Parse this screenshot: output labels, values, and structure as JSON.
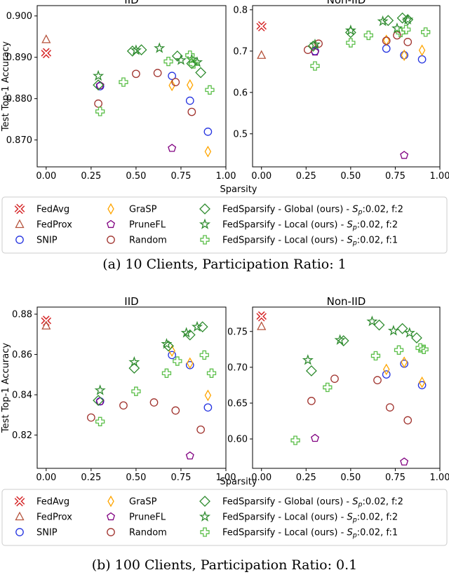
{
  "colors": {
    "FedAvg": "#d62728",
    "FedProx": "#b5533c",
    "SNIP": "#2433e0",
    "GraSP": "#ffa500",
    "PruneFL": "#800080",
    "Random": "#a0322d",
    "FedSparsifyGlobal": "#2e8b2e",
    "FedSparsifyLocal2": "#2e8b2e",
    "FedSparsifyLocal1": "#5cbf4a"
  },
  "legend": {
    "items": [
      {
        "key": "FedAvg",
        "label": "FedAvg"
      },
      {
        "key": "FedProx",
        "label": "FedProx"
      },
      {
        "key": "SNIP",
        "label": "SNIP"
      },
      {
        "key": "GraSP",
        "label": "GraSP"
      },
      {
        "key": "PruneFL",
        "label": "PruneFL"
      },
      {
        "key": "Random",
        "label": "Random"
      },
      {
        "key": "FedSparsifyGlobal",
        "label": "FedSparsify - Global (ours) - ",
        "sp_sym": "S",
        "sp_sub": "p",
        "sp_rest": ":0.02, f:2"
      },
      {
        "key": "FedSparsifyLocal2",
        "label": "FedSparsify - Local (ours) - ",
        "sp_sym": "S",
        "sp_sub": "p",
        "sp_rest": ":0.02, f:2"
      },
      {
        "key": "FedSparsifyLocal1",
        "label": "FedSparsify - Local (ours) - ",
        "sp_sym": "S",
        "sp_sub": "p",
        "sp_rest": ":0.02, f:1"
      }
    ]
  },
  "captions": {
    "a": "(a) 10 Clients, Participation Ratio: 1",
    "b": "(b) 100 Clients, Participation Ratio: 0.1"
  },
  "chart_data": [
    {
      "type": "scatter",
      "title": "IID",
      "xlabel": "Sparsity",
      "ylabel": "Test Top-1 Accuracy",
      "xlim": [
        -0.05,
        1.0
      ],
      "ylim": [
        0.8635,
        0.9025
      ],
      "xticks": [
        "0.00",
        "0.25",
        "0.50",
        "0.75",
        "1.00"
      ],
      "yticks": [
        "0.870",
        "0.880",
        "0.890",
        "0.900"
      ],
      "series": [
        {
          "name": "FedAvg",
          "points": [
            [
              0.0,
              0.891
            ]
          ]
        },
        {
          "name": "FedProx",
          "points": [
            [
              0.0,
              0.8943
            ]
          ]
        },
        {
          "name": "SNIP",
          "points": [
            [
              0.3,
              0.883
            ],
            [
              0.7,
              0.8855
            ],
            [
              0.8,
              0.8795
            ],
            [
              0.9,
              0.872
            ]
          ]
        },
        {
          "name": "GraSP",
          "points": [
            [
              0.7,
              0.8832
            ],
            [
              0.8,
              0.8833
            ],
            [
              0.9,
              0.8672
            ]
          ]
        },
        {
          "name": "PruneFL",
          "points": [
            [
              0.3,
              0.8832
            ],
            [
              0.7,
              0.868
            ]
          ]
        },
        {
          "name": "Random",
          "points": [
            [
              0.29,
              0.8788
            ],
            [
              0.5,
              0.886
            ],
            [
              0.62,
              0.8862
            ],
            [
              0.72,
              0.884
            ],
            [
              0.81,
              0.8768
            ]
          ]
        },
        {
          "name": "FedSparsifyGlobal",
          "points": [
            [
              0.29,
              0.8833
            ],
            [
              0.48,
              0.8915
            ],
            [
              0.53,
              0.8918
            ],
            [
              0.73,
              0.8903
            ],
            [
              0.86,
              0.8863
            ],
            [
              0.81,
              0.8885
            ]
          ]
        },
        {
          "name": "FedSparsifyLocal2",
          "points": [
            [
              0.29,
              0.8855
            ],
            [
              0.5,
              0.8917
            ],
            [
              0.63,
              0.8922
            ],
            [
              0.75,
              0.8893
            ],
            [
              0.81,
              0.8895
            ],
            [
              0.84,
              0.8888
            ]
          ]
        },
        {
          "name": "FedSparsifyLocal1",
          "points": [
            [
              0.3,
              0.8769
            ],
            [
              0.43,
              0.884
            ],
            [
              0.68,
              0.889
            ],
            [
              0.8,
              0.8905
            ],
            [
              0.82,
              0.8884
            ],
            [
              0.91,
              0.8821
            ]
          ]
        }
      ]
    },
    {
      "type": "scatter",
      "title": "Non-IID",
      "xlabel": "",
      "ylabel": "",
      "xlim": [
        -0.05,
        1.0
      ],
      "ylim": [
        0.42,
        0.81
      ],
      "xticks": [
        "0.00",
        "0.25",
        "0.50",
        "0.75",
        "1.00"
      ],
      "yticks": [
        "0.5",
        "0.6",
        "0.7",
        "0.8"
      ],
      "series": [
        {
          "name": "FedAvg",
          "points": [
            [
              0.0,
              0.76
            ]
          ]
        },
        {
          "name": "FedProx",
          "points": [
            [
              0.0,
              0.69
            ]
          ]
        },
        {
          "name": "SNIP",
          "points": [
            [
              0.3,
              0.7
            ],
            [
              0.7,
              0.706
            ],
            [
              0.8,
              0.69
            ],
            [
              0.9,
              0.68
            ]
          ]
        },
        {
          "name": "GraSP",
          "points": [
            [
              0.7,
              0.726
            ],
            [
              0.8,
              0.69
            ],
            [
              0.9,
              0.702
            ]
          ]
        },
        {
          "name": "PruneFL",
          "points": [
            [
              0.3,
              0.698
            ],
            [
              0.8,
              0.448
            ]
          ]
        },
        {
          "name": "Random",
          "points": [
            [
              0.26,
              0.703
            ],
            [
              0.32,
              0.718
            ],
            [
              0.7,
              0.725
            ],
            [
              0.76,
              0.738
            ],
            [
              0.82,
              0.722
            ]
          ]
        },
        {
          "name": "FedSparsifyGlobal",
          "points": [
            [
              0.29,
              0.712
            ],
            [
              0.5,
              0.745
            ],
            [
              0.71,
              0.774
            ],
            [
              0.79,
              0.78
            ],
            [
              0.82,
              0.776
            ]
          ]
        },
        {
          "name": "FedSparsifyLocal2",
          "points": [
            [
              0.3,
              0.716
            ],
            [
              0.5,
              0.75
            ],
            [
              0.68,
              0.772
            ],
            [
              0.76,
              0.755
            ],
            [
              0.82,
              0.776
            ]
          ]
        },
        {
          "name": "FedSparsifyLocal1",
          "points": [
            [
              0.3,
              0.664
            ],
            [
              0.5,
              0.72
            ],
            [
              0.6,
              0.738
            ],
            [
              0.78,
              0.745
            ],
            [
              0.81,
              0.752
            ],
            [
              0.92,
              0.746
            ]
          ]
        }
      ]
    },
    {
      "type": "scatter",
      "title": "IID",
      "xlabel": "Sparsity",
      "ylabel": "Test Top-1 Accuracy",
      "xlim": [
        -0.05,
        1.0
      ],
      "ylim": [
        0.8035,
        0.8835
      ],
      "xticks": [
        "0.00",
        "0.25",
        "0.50",
        "0.75",
        "1.00"
      ],
      "yticks": [
        "0.82",
        "0.84",
        "0.86",
        "0.88"
      ],
      "series": [
        {
          "name": "FedAvg",
          "points": [
            [
              0.0,
              0.8767
            ]
          ]
        },
        {
          "name": "FedProx",
          "points": [
            [
              0.0,
              0.8742
            ]
          ]
        },
        {
          "name": "SNIP",
          "points": [
            [
              0.3,
              0.8367
            ],
            [
              0.7,
              0.8597
            ],
            [
              0.8,
              0.8547
            ],
            [
              0.9,
              0.8337
            ]
          ]
        },
        {
          "name": "GraSP",
          "points": [
            [
              0.7,
              0.8617
            ],
            [
              0.8,
              0.8557
            ],
            [
              0.9,
              0.8397
            ]
          ]
        },
        {
          "name": "PruneFL",
          "points": [
            [
              0.3,
              0.8367
            ],
            [
              0.8,
              0.8097
            ]
          ]
        },
        {
          "name": "Random",
          "points": [
            [
              0.25,
              0.8287
            ],
            [
              0.43,
              0.8347
            ],
            [
              0.6,
              0.8362
            ],
            [
              0.72,
              0.8322
            ],
            [
              0.86,
              0.8227
            ]
          ]
        },
        {
          "name": "FedSparsifyGlobal",
          "points": [
            [
              0.29,
              0.8372
            ],
            [
              0.49,
              0.8532
            ],
            [
              0.68,
              0.8642
            ],
            [
              0.8,
              0.8697
            ],
            [
              0.87,
              0.8737
            ]
          ]
        },
        {
          "name": "FedSparsifyLocal2",
          "points": [
            [
              0.3,
              0.8422
            ],
            [
              0.49,
              0.8562
            ],
            [
              0.67,
              0.8652
            ],
            [
              0.78,
              0.8707
            ],
            [
              0.84,
              0.8737
            ]
          ]
        },
        {
          "name": "FedSparsifyLocal1",
          "points": [
            [
              0.3,
              0.8267
            ],
            [
              0.5,
              0.8417
            ],
            [
              0.67,
              0.8507
            ],
            [
              0.73,
              0.8567
            ],
            [
              0.88,
              0.8597
            ],
            [
              0.92,
              0.8507
            ]
          ]
        }
      ]
    },
    {
      "type": "scatter",
      "title": "Non-IID",
      "xlabel": "",
      "ylabel": "",
      "xlim": [
        -0.05,
        1.0
      ],
      "ylim": [
        0.559,
        0.784
      ],
      "xticks": [
        "0.00",
        "0.25",
        "0.50",
        "0.75",
        "1.00"
      ],
      "yticks": [
        "0.60",
        "0.65",
        "0.70",
        "0.75"
      ],
      "series": [
        {
          "name": "FedAvg",
          "points": [
            [
              0.0,
              0.771
            ]
          ]
        },
        {
          "name": "FedProx",
          "points": [
            [
              0.0,
              0.757
            ]
          ]
        },
        {
          "name": "SNIP",
          "points": [
            [
              0.7,
              0.69
            ],
            [
              0.8,
              0.705
            ],
            [
              0.9,
              0.675
            ]
          ]
        },
        {
          "name": "GraSP",
          "points": [
            [
              0.7,
              0.697
            ],
            [
              0.8,
              0.707
            ],
            [
              0.9,
              0.679
            ]
          ]
        },
        {
          "name": "PruneFL",
          "points": [
            [
              0.3,
              0.601
            ],
            [
              0.8,
              0.568
            ]
          ]
        },
        {
          "name": "Random",
          "points": [
            [
              0.28,
              0.653
            ],
            [
              0.41,
              0.684
            ],
            [
              0.65,
              0.682
            ],
            [
              0.72,
              0.644
            ],
            [
              0.82,
              0.626
            ]
          ]
        },
        {
          "name": "FedSparsifyGlobal",
          "points": [
            [
              0.28,
              0.695
            ],
            [
              0.46,
              0.737
            ],
            [
              0.66,
              0.759
            ],
            [
              0.79,
              0.754
            ],
            [
              0.87,
              0.741
            ]
          ]
        },
        {
          "name": "FedSparsifyLocal2",
          "points": [
            [
              0.26,
              0.71
            ],
            [
              0.44,
              0.738
            ],
            [
              0.62,
              0.764
            ],
            [
              0.74,
              0.751
            ],
            [
              0.83,
              0.748
            ]
          ]
        },
        {
          "name": "FedSparsifyLocal1",
          "points": [
            [
              0.19,
              0.598
            ],
            [
              0.37,
              0.672
            ],
            [
              0.64,
              0.716
            ],
            [
              0.77,
              0.724
            ],
            [
              0.89,
              0.727
            ],
            [
              0.91,
              0.725
            ]
          ]
        }
      ]
    }
  ]
}
